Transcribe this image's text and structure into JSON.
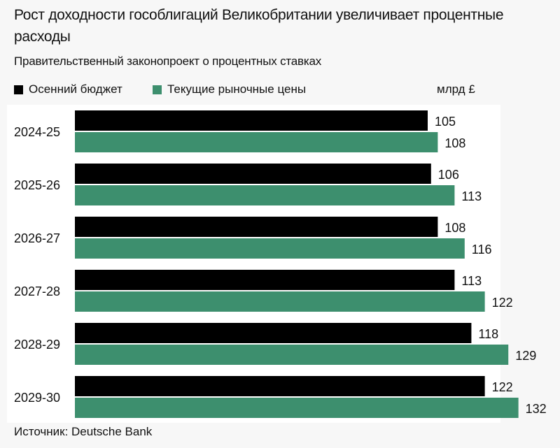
{
  "chart_data": {
    "type": "bar",
    "orientation": "horizontal",
    "title": "Рост доходности гособлигаций Великобритании увеличивает процентные расходы",
    "subtitle": "Правительственный законопроект о процентных ставках",
    "unit": "млрд £",
    "categories": [
      "2024-25",
      "2025-26",
      "2026-27",
      "2027-28",
      "2028-29",
      "2029-30"
    ],
    "series": [
      {
        "name": "Осенний бюджет",
        "color": "#000000",
        "values": [
          105,
          106,
          108,
          113,
          118,
          122
        ]
      },
      {
        "name": "Текущие рыночные цены",
        "color": "#3d8f6e",
        "values": [
          108,
          113,
          116,
          122,
          129,
          132
        ]
      }
    ],
    "xlim": [
      0,
      140
    ],
    "grid": false,
    "legend": "top-left",
    "source": "Источник: Deutsche Bank"
  }
}
